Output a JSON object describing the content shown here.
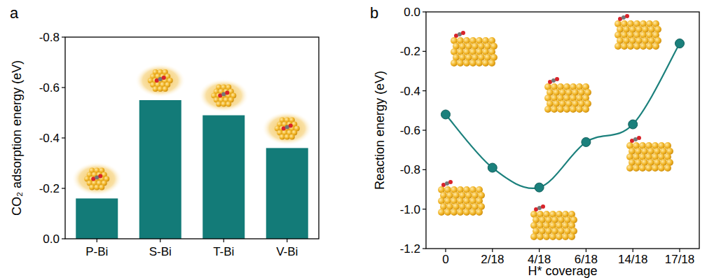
{
  "chart_data": [
    {
      "type": "bar",
      "title": "a",
      "categories": [
        "P-Bi",
        "S-Bi",
        "T-Bi",
        "V-Bi"
      ],
      "values": [
        -0.16,
        -0.55,
        -0.49,
        -0.36
      ],
      "color": "#137b78",
      "y_label": "CO₂ adsorption energy (eV)",
      "ylim": [
        0,
        -0.8
      ],
      "yticks": [
        {
          "value": 0,
          "label": "0.0"
        },
        -0.2,
        -0.4,
        -0.6,
        -0.8
      ]
    },
    {
      "type": "line",
      "title": "b",
      "categories": [
        "0",
        "2/18",
        "4/18",
        "6/18",
        "14/18",
        "17/18"
      ],
      "values": [
        -0.52,
        -0.79,
        -0.89,
        -0.66,
        -0.57,
        -0.16
      ],
      "color": "#1b807c",
      "marker": "circle",
      "line_style": "smooth",
      "x_label": "H* coverage",
      "y_label": "Reaction energy (eV)",
      "ylim": [
        -1.2,
        0
      ],
      "yticks": [
        -1.2,
        {
          "value": -1,
          "label": "-1.0"
        },
        -0.8,
        -0.6,
        -0.4,
        -0.2,
        {
          "value": 0,
          "label": "0.0"
        }
      ]
    }
  ]
}
